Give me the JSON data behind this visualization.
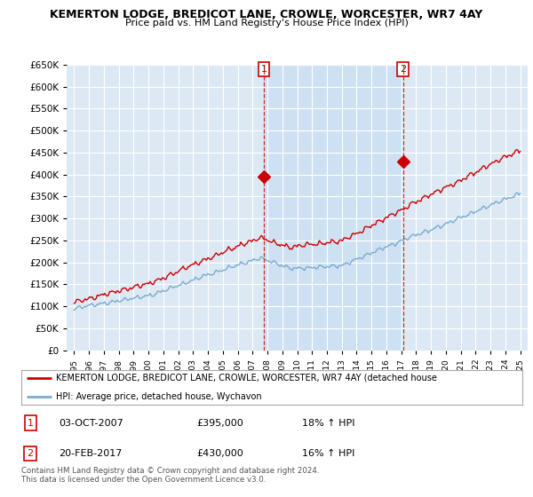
{
  "title1": "KEMERTON LODGE, BREDICOT LANE, CROWLE, WORCESTER, WR7 4AY",
  "title2": "Price paid vs. HM Land Registry's House Price Index (HPI)",
  "ylim": [
    0,
    650000
  ],
  "yticks": [
    0,
    50000,
    100000,
    150000,
    200000,
    250000,
    300000,
    350000,
    400000,
    450000,
    500000,
    550000,
    600000,
    650000
  ],
  "bg_color": "#dce9f5",
  "line_color_red": "#cc0000",
  "line_color_blue": "#7aabcf",
  "shade_color": "#c5ddf0",
  "marker1_x": 2007.75,
  "marker1_y": 395000,
  "marker2_x": 2017.12,
  "marker2_y": 430000,
  "legend_label_red": "KEMERTON LODGE, BREDICOT LANE, CROWLE, WORCESTER, WR7 4AY (detached house",
  "legend_label_blue": "HPI: Average price, detached house, Wychavon",
  "table_row1": [
    "1",
    "03-OCT-2007",
    "£395,000",
    "18% ↑ HPI"
  ],
  "table_row2": [
    "2",
    "20-FEB-2017",
    "£430,000",
    "16% ↑ HPI"
  ],
  "footer1": "Contains HM Land Registry data © Crown copyright and database right 2024.",
  "footer2": "This data is licensed under the Open Government Licence v3.0.",
  "xlim_start": 1994.5,
  "xlim_end": 2025.5
}
